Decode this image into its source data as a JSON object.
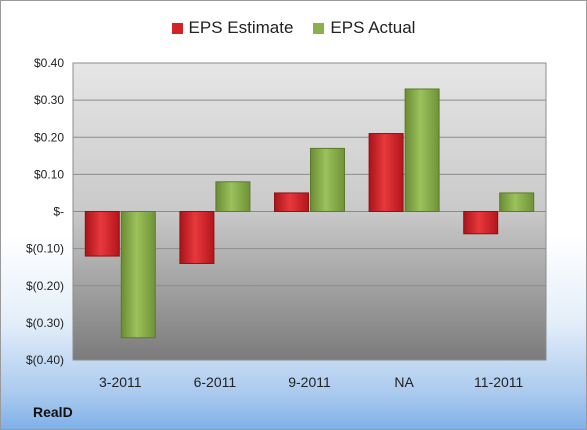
{
  "company": "RealD",
  "colors": {
    "estimate": "#d42226",
    "actual": "#8ab04b"
  },
  "chart_data": {
    "type": "bar",
    "categories": [
      "3-2011",
      "6-2011",
      "9-2011",
      "NA",
      "11-2011"
    ],
    "series": [
      {
        "name": "EPS Estimate",
        "values": [
          -0.12,
          -0.14,
          0.05,
          0.21,
          -0.06
        ]
      },
      {
        "name": "EPS Actual",
        "values": [
          -0.34,
          0.08,
          0.17,
          0.33,
          0.05
        ]
      }
    ],
    "ylim": [
      -0.4,
      0.4
    ],
    "yticks": [
      0.4,
      0.3,
      0.2,
      0.1,
      0,
      -0.1,
      -0.2,
      -0.3,
      -0.4
    ],
    "ytick_labels": [
      "$0.40",
      "$0.30",
      "$0.20",
      "$0.10",
      "$-",
      "$(0.10)",
      "$(0.20)",
      "$(0.30)",
      "$(0.40)"
    ],
    "grid": true,
    "legend_position": "top"
  }
}
